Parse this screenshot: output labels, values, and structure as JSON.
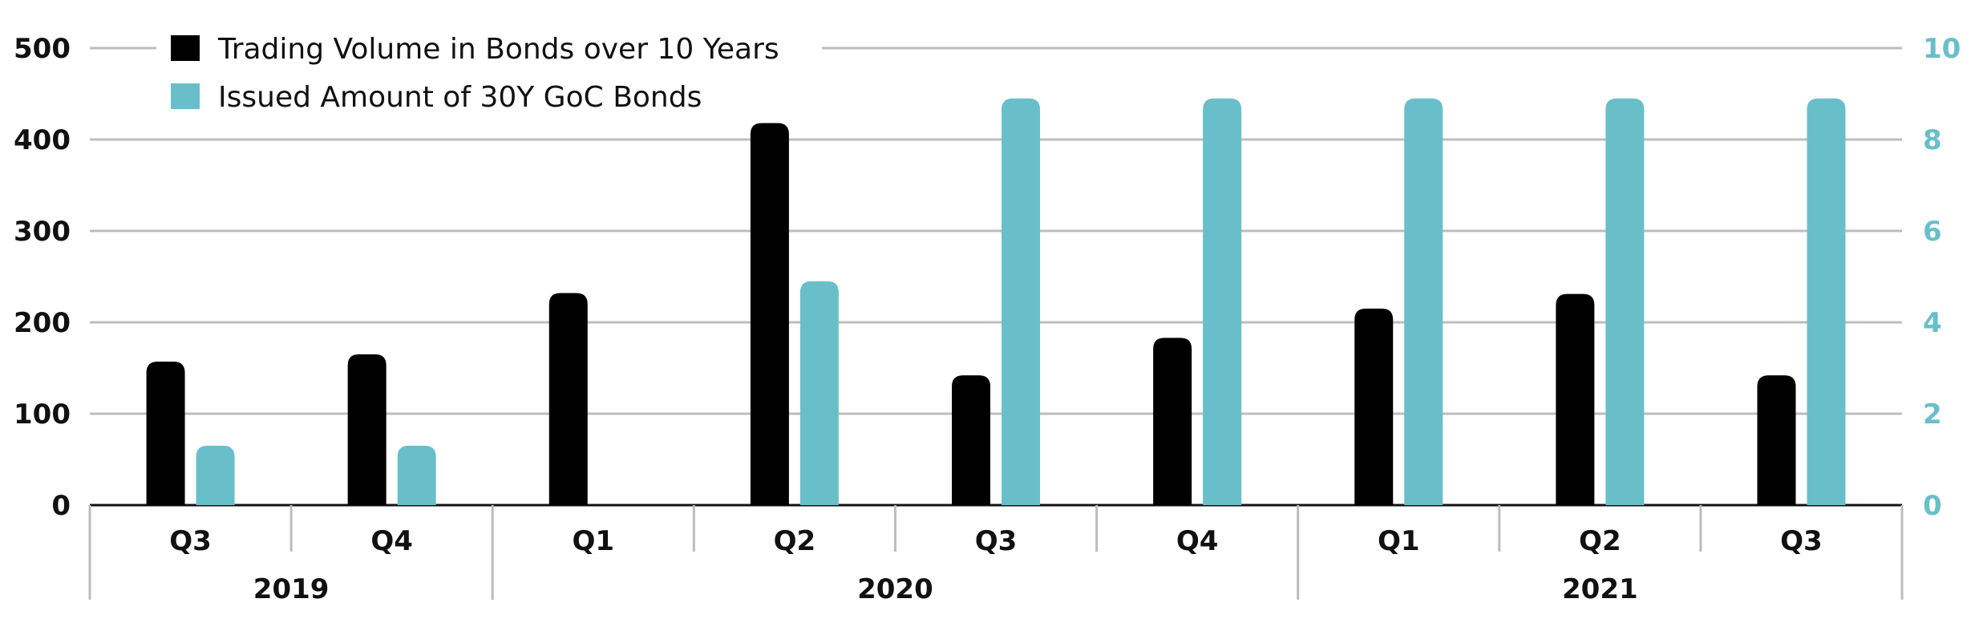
{
  "chart_data": {
    "type": "bar",
    "categories": [
      "Q3",
      "Q4",
      "Q1",
      "Q2",
      "Q3",
      "Q4",
      "Q1",
      "Q2",
      "Q3"
    ],
    "year_groups": [
      {
        "label": "2019",
        "start": 0,
        "end": 1
      },
      {
        "label": "2020",
        "start": 2,
        "end": 5
      },
      {
        "label": "2021",
        "start": 6,
        "end": 8
      }
    ],
    "series": [
      {
        "name": "Trading Volume in Bonds over 10 Years",
        "axis": "left",
        "color": "#000000",
        "values": [
          157,
          165,
          232,
          418,
          142,
          183,
          215,
          231,
          142
        ]
      },
      {
        "name": "Issued Amount of 30Y GoC Bonds",
        "axis": "right",
        "color": "#69BFC9",
        "values": [
          1.3,
          1.3,
          0,
          4.9,
          8.9,
          8.9,
          8.9,
          8.9,
          8.9
        ]
      }
    ],
    "y_left": {
      "ylim": [
        0,
        500
      ],
      "ticks": [
        "0",
        "100",
        "200",
        "300",
        "400",
        "500"
      ]
    },
    "y_right": {
      "ylim": [
        0,
        10
      ],
      "ticks": [
        "0",
        "2",
        "4",
        "6",
        "8",
        "10"
      ],
      "color": "#69BFC9"
    },
    "grid": true,
    "legend_position": "top-left"
  }
}
